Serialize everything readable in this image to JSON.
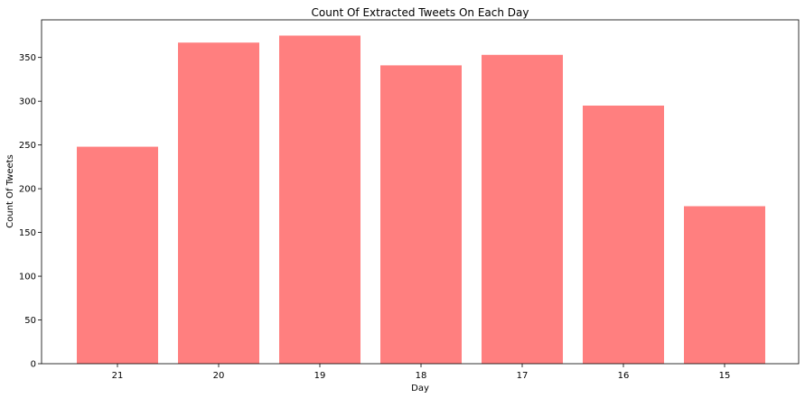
{
  "chart_data": {
    "type": "bar",
    "title": "Count Of Extracted Tweets On Each Day",
    "xlabel": "Day",
    "ylabel": "Count Of Tweets",
    "categories": [
      "21",
      "20",
      "19",
      "18",
      "17",
      "16",
      "15"
    ],
    "values": [
      248,
      367,
      375,
      341,
      353,
      295,
      180
    ],
    "yticks": [
      0,
      50,
      100,
      150,
      200,
      250,
      300,
      350
    ],
    "ylim": [
      0,
      393
    ],
    "bar_color": "#ff7f7f",
    "grid": false,
    "legend": "none"
  }
}
